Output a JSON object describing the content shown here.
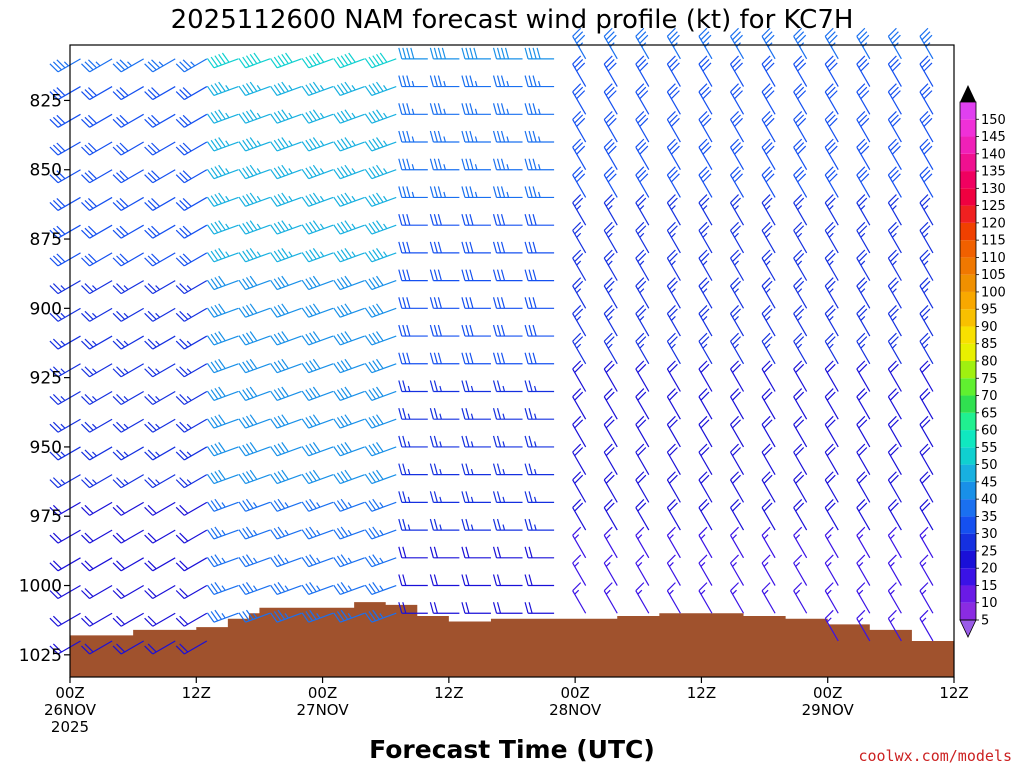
{
  "chart_data": {
    "type": "wind_profile",
    "title": "2025112600 NAM forecast wind profile (kt) for KC7H",
    "xlabel": "Forecast Time (UTC)",
    "credit": "coolwx.com/models",
    "x_ticks": [
      {
        "hour": 0,
        "label1": "00Z",
        "label2": "26NOV",
        "label3": "2025"
      },
      {
        "hour": 12,
        "label1": "12Z",
        "label2": "",
        "label3": ""
      },
      {
        "hour": 24,
        "label1": "00Z",
        "label2": "27NOV",
        "label3": ""
      },
      {
        "hour": 36,
        "label1": "12Z",
        "label2": "",
        "label3": ""
      },
      {
        "hour": 48,
        "label1": "00Z",
        "label2": "28NOV",
        "label3": ""
      },
      {
        "hour": 60,
        "label1": "12Z",
        "label2": "",
        "label3": ""
      },
      {
        "hour": 72,
        "label1": "00Z",
        "label2": "29NOV",
        "label3": ""
      },
      {
        "hour": 84,
        "label1": "12Z",
        "label2": "",
        "label3": ""
      }
    ],
    "y_ticks": [
      825,
      850,
      875,
      900,
      925,
      950,
      975,
      1000,
      1025
    ],
    "ylim_hPa": [
      805,
      1033
    ],
    "xlim_hours": [
      0,
      84
    ],
    "colorbar": {
      "levels": [
        5,
        10,
        15,
        20,
        25,
        30,
        35,
        40,
        45,
        50,
        55,
        60,
        65,
        70,
        75,
        80,
        85,
        90,
        95,
        100,
        105,
        110,
        115,
        120,
        125,
        130,
        135,
        140,
        145,
        150
      ],
      "colors": [
        "#8a2be2",
        "#6a1ae6",
        "#3a12e6",
        "#1a10d8",
        "#1530e0",
        "#1550f0",
        "#1a70f0",
        "#1990e8",
        "#18b0e0",
        "#10d0d0",
        "#10e8c0",
        "#20f090",
        "#30e050",
        "#60f030",
        "#a0f010",
        "#e8f000",
        "#f8e000",
        "#f8c000",
        "#f8a800",
        "#f09000",
        "#f07800",
        "#f06000",
        "#f04000",
        "#f02020",
        "#f00040",
        "#f00060",
        "#f01090",
        "#f020b8",
        "#f030d8",
        "#e040f0"
      ],
      "over_color": "#000000",
      "under_color": "#9a5ce8"
    },
    "terrain_color": "#a0522d",
    "terrain_pressure_hPa": [
      [
        0,
        1018
      ],
      [
        6,
        1016
      ],
      [
        12,
        1015
      ],
      [
        15,
        1012
      ],
      [
        17,
        1010
      ],
      [
        18,
        1008
      ],
      [
        21,
        1008
      ],
      [
        24,
        1008
      ],
      [
        27,
        1006
      ],
      [
        30,
        1007
      ],
      [
        33,
        1011
      ],
      [
        36,
        1013
      ],
      [
        40,
        1012
      ],
      [
        44,
        1012
      ],
      [
        48,
        1012
      ],
      [
        52,
        1011
      ],
      [
        56,
        1010
      ],
      [
        60,
        1010
      ],
      [
        64,
        1011
      ],
      [
        68,
        1012
      ],
      [
        70,
        1012
      ],
      [
        72,
        1014
      ],
      [
        76,
        1016
      ],
      [
        80,
        1020
      ],
      [
        84,
        1024
      ]
    ],
    "wind_regimes": [
      {
        "hours": [
          0,
          14
        ],
        "direction_deg": 240,
        "speed_kt_surface": 20,
        "speed_kt_top": 35
      },
      {
        "hours": [
          15,
          32
        ],
        "direction_deg": 250,
        "speed_kt_surface": 35,
        "speed_kt_top": 50
      },
      {
        "hours": [
          33,
          48
        ],
        "direction_deg": 270,
        "speed_kt_surface": 20,
        "speed_kt_top": 40
      },
      {
        "hours": [
          49,
          84
        ],
        "direction_deg": 330,
        "speed_kt_surface": 15,
        "speed_kt_top": 35
      }
    ]
  }
}
